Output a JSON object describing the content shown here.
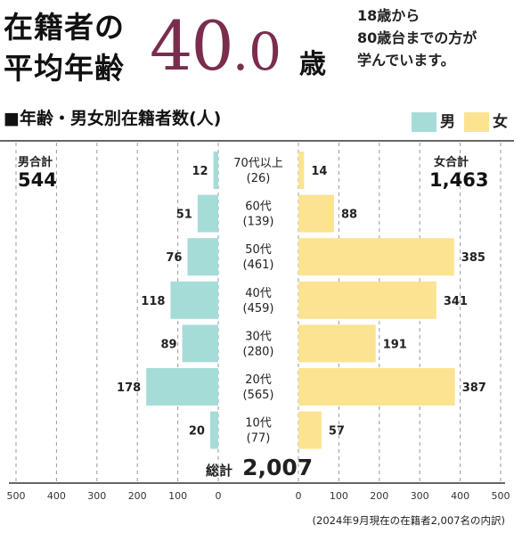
{
  "headline": {
    "title_line1": "在籍者の",
    "title_line2": "平均年齢",
    "value_int": "40",
    "value_dot": ".",
    "value_dec": "0",
    "unit": "歳",
    "note_lines": [
      "18歳から",
      "80歳台までの方が",
      "学んでいます。"
    ]
  },
  "legend": {
    "male_label": "男",
    "female_label": "女"
  },
  "colors": {
    "male": "#a6dcd8",
    "female": "#fbe392",
    "accent": "#7a2d4e"
  },
  "totals": {
    "male_label": "男合計",
    "male_value": "544",
    "female_label": "女合計",
    "female_value": "1,463",
    "grand_label": "総計",
    "grand_value": "2,007"
  },
  "footnote": "(2024年9月現在の在籍者2,007名の内訳)",
  "chart_data": {
    "type": "bar",
    "title": "■年齢・男女別在籍者数(人)",
    "orientation": "horizontal-butterfly",
    "categories": [
      "70代以上",
      "60代",
      "50代",
      "40代",
      "30代",
      "20代",
      "10代"
    ],
    "category_totals": [
      "(26)",
      "(139)",
      "(461)",
      "(459)",
      "(280)",
      "(565)",
      "(77)"
    ],
    "series": [
      {
        "name": "男",
        "values": [
          12,
          51,
          76,
          118,
          89,
          178,
          20
        ]
      },
      {
        "name": "女",
        "values": [
          14,
          88,
          385,
          341,
          191,
          387,
          57
        ]
      }
    ],
    "xlim_male": [
      500,
      0
    ],
    "xlim_female": [
      0,
      500
    ],
    "ticks_male": [
      "500",
      "400",
      "300",
      "200",
      "100",
      "0"
    ],
    "ticks_female": [
      "0",
      "100",
      "200",
      "300",
      "400",
      "500"
    ],
    "grid": true
  }
}
